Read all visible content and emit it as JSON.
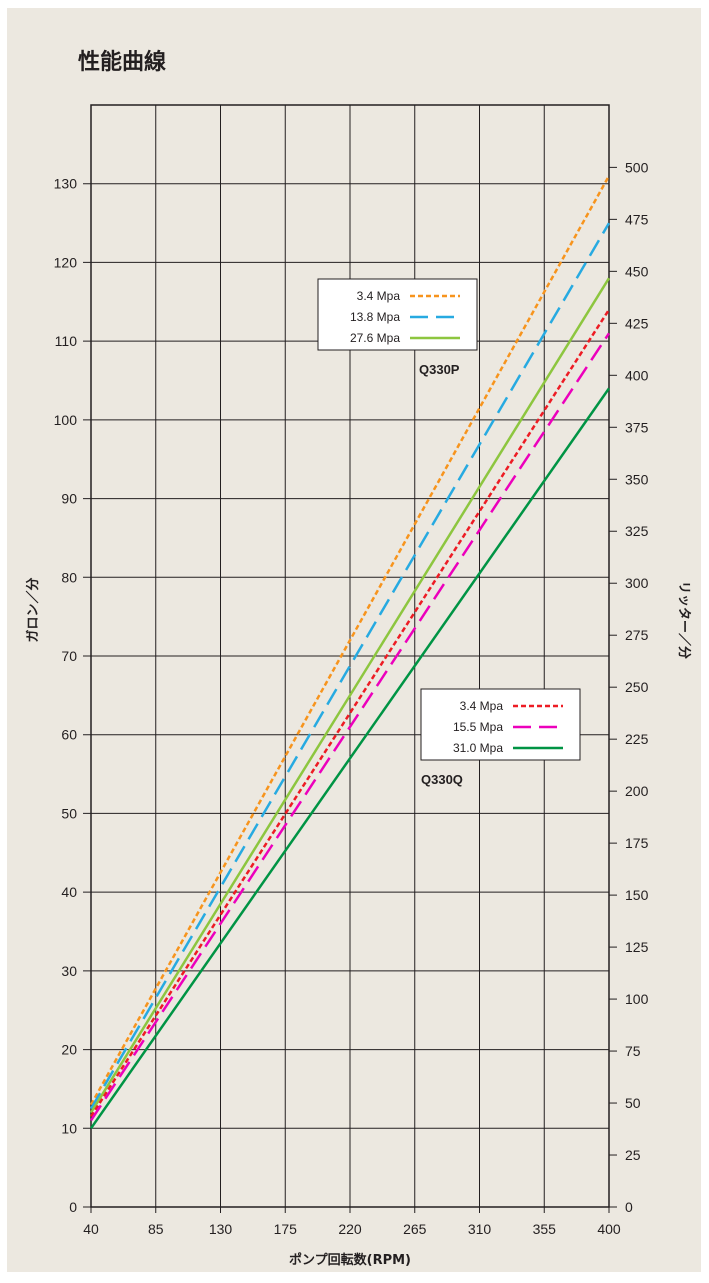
{
  "title": "性能曲線",
  "chart_data": {
    "type": "line",
    "title": "性能曲線",
    "xlabel": "ポンプ回転数(RPM)",
    "ylabel": "ガロン／分",
    "y2label": "リッター／分",
    "xlim": [
      40,
      400
    ],
    "ylim": [
      0,
      140
    ],
    "y2lim": [
      0,
      530
    ],
    "x_ticks": [
      40,
      85,
      130,
      175,
      220,
      265,
      310,
      355,
      400
    ],
    "y_ticks": [
      0,
      10,
      20,
      30,
      40,
      50,
      60,
      70,
      80,
      90,
      100,
      110,
      120,
      130
    ],
    "y2_ticks": [
      0,
      25,
      50,
      75,
      100,
      125,
      150,
      175,
      200,
      225,
      250,
      275,
      300,
      325,
      350,
      375,
      400,
      425,
      450,
      475,
      500
    ],
    "grid": true,
    "groups": [
      {
        "model": "Q330P",
        "series": [
          {
            "name": "3.4 Mpa",
            "color": "#f7941d",
            "dash": "dotted",
            "x": [
              40,
              400
            ],
            "y": [
              13,
              131
            ]
          },
          {
            "name": "13.8 Mpa",
            "color": "#27aae1",
            "dash": "dashed",
            "x": [
              40,
              400
            ],
            "y": [
              12.5,
              125
            ]
          },
          {
            "name": "27.6 Mpa",
            "color": "#8dc63f",
            "dash": "solid",
            "x": [
              40,
              400
            ],
            "y": [
              12,
              118
            ]
          }
        ]
      },
      {
        "model": "Q330Q",
        "series": [
          {
            "name": "3.4 Mpa",
            "color": "#ed1c24",
            "dash": "dotted",
            "x": [
              40,
              400
            ],
            "y": [
              11.5,
              114
            ]
          },
          {
            "name": "15.5 Mpa",
            "color": "#ec00bc",
            "dash": "dashed",
            "x": [
              40,
              400
            ],
            "y": [
              11,
              111
            ]
          },
          {
            "name": "31.0 Mpa",
            "color": "#009444",
            "dash": "solid",
            "x": [
              40,
              400
            ],
            "y": [
              10,
              104
            ]
          }
        ]
      }
    ]
  }
}
